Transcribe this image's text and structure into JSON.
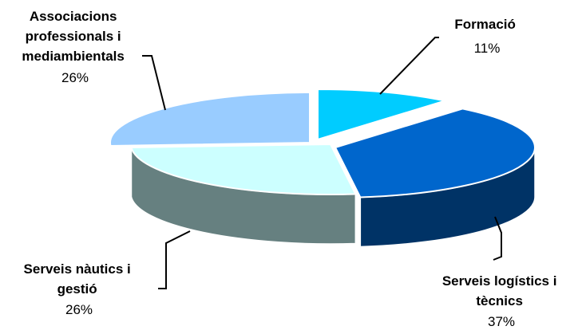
{
  "chart_data": {
    "type": "pie",
    "style": "3d-exploded",
    "title": "",
    "slices": [
      {
        "label": "Formació",
        "value": 11,
        "display": "11%",
        "color": "#00CCFF",
        "side_color": "#0088AA"
      },
      {
        "label": "Serveis logístics i tècnics",
        "value": 37,
        "display": "37%",
        "color": "#0066CC",
        "side_color": "#003366"
      },
      {
        "label": "Serveis nàutics i gestió",
        "value": 26,
        "display": "26%",
        "color": "#CCFFFF",
        "side_color": "#668080"
      },
      {
        "label": "Associacions professionals i mediambientals",
        "value": 26,
        "display": "26%",
        "color": "#99CCFF",
        "side_color": "#6688AA"
      }
    ],
    "legend": "none"
  },
  "labels": {
    "formacio": {
      "lines": [
        "Formació"
      ],
      "pct": "11%"
    },
    "logistics": {
      "lines": [
        "Serveis logístics i",
        "tècnics"
      ],
      "pct": "37%"
    },
    "nautics": {
      "lines": [
        "Serveis nàutics i",
        "gestió"
      ],
      "pct": "26%"
    },
    "associacions": {
      "lines": [
        "Associacions",
        "professionals i",
        "mediambientals"
      ],
      "pct": "26%"
    }
  }
}
